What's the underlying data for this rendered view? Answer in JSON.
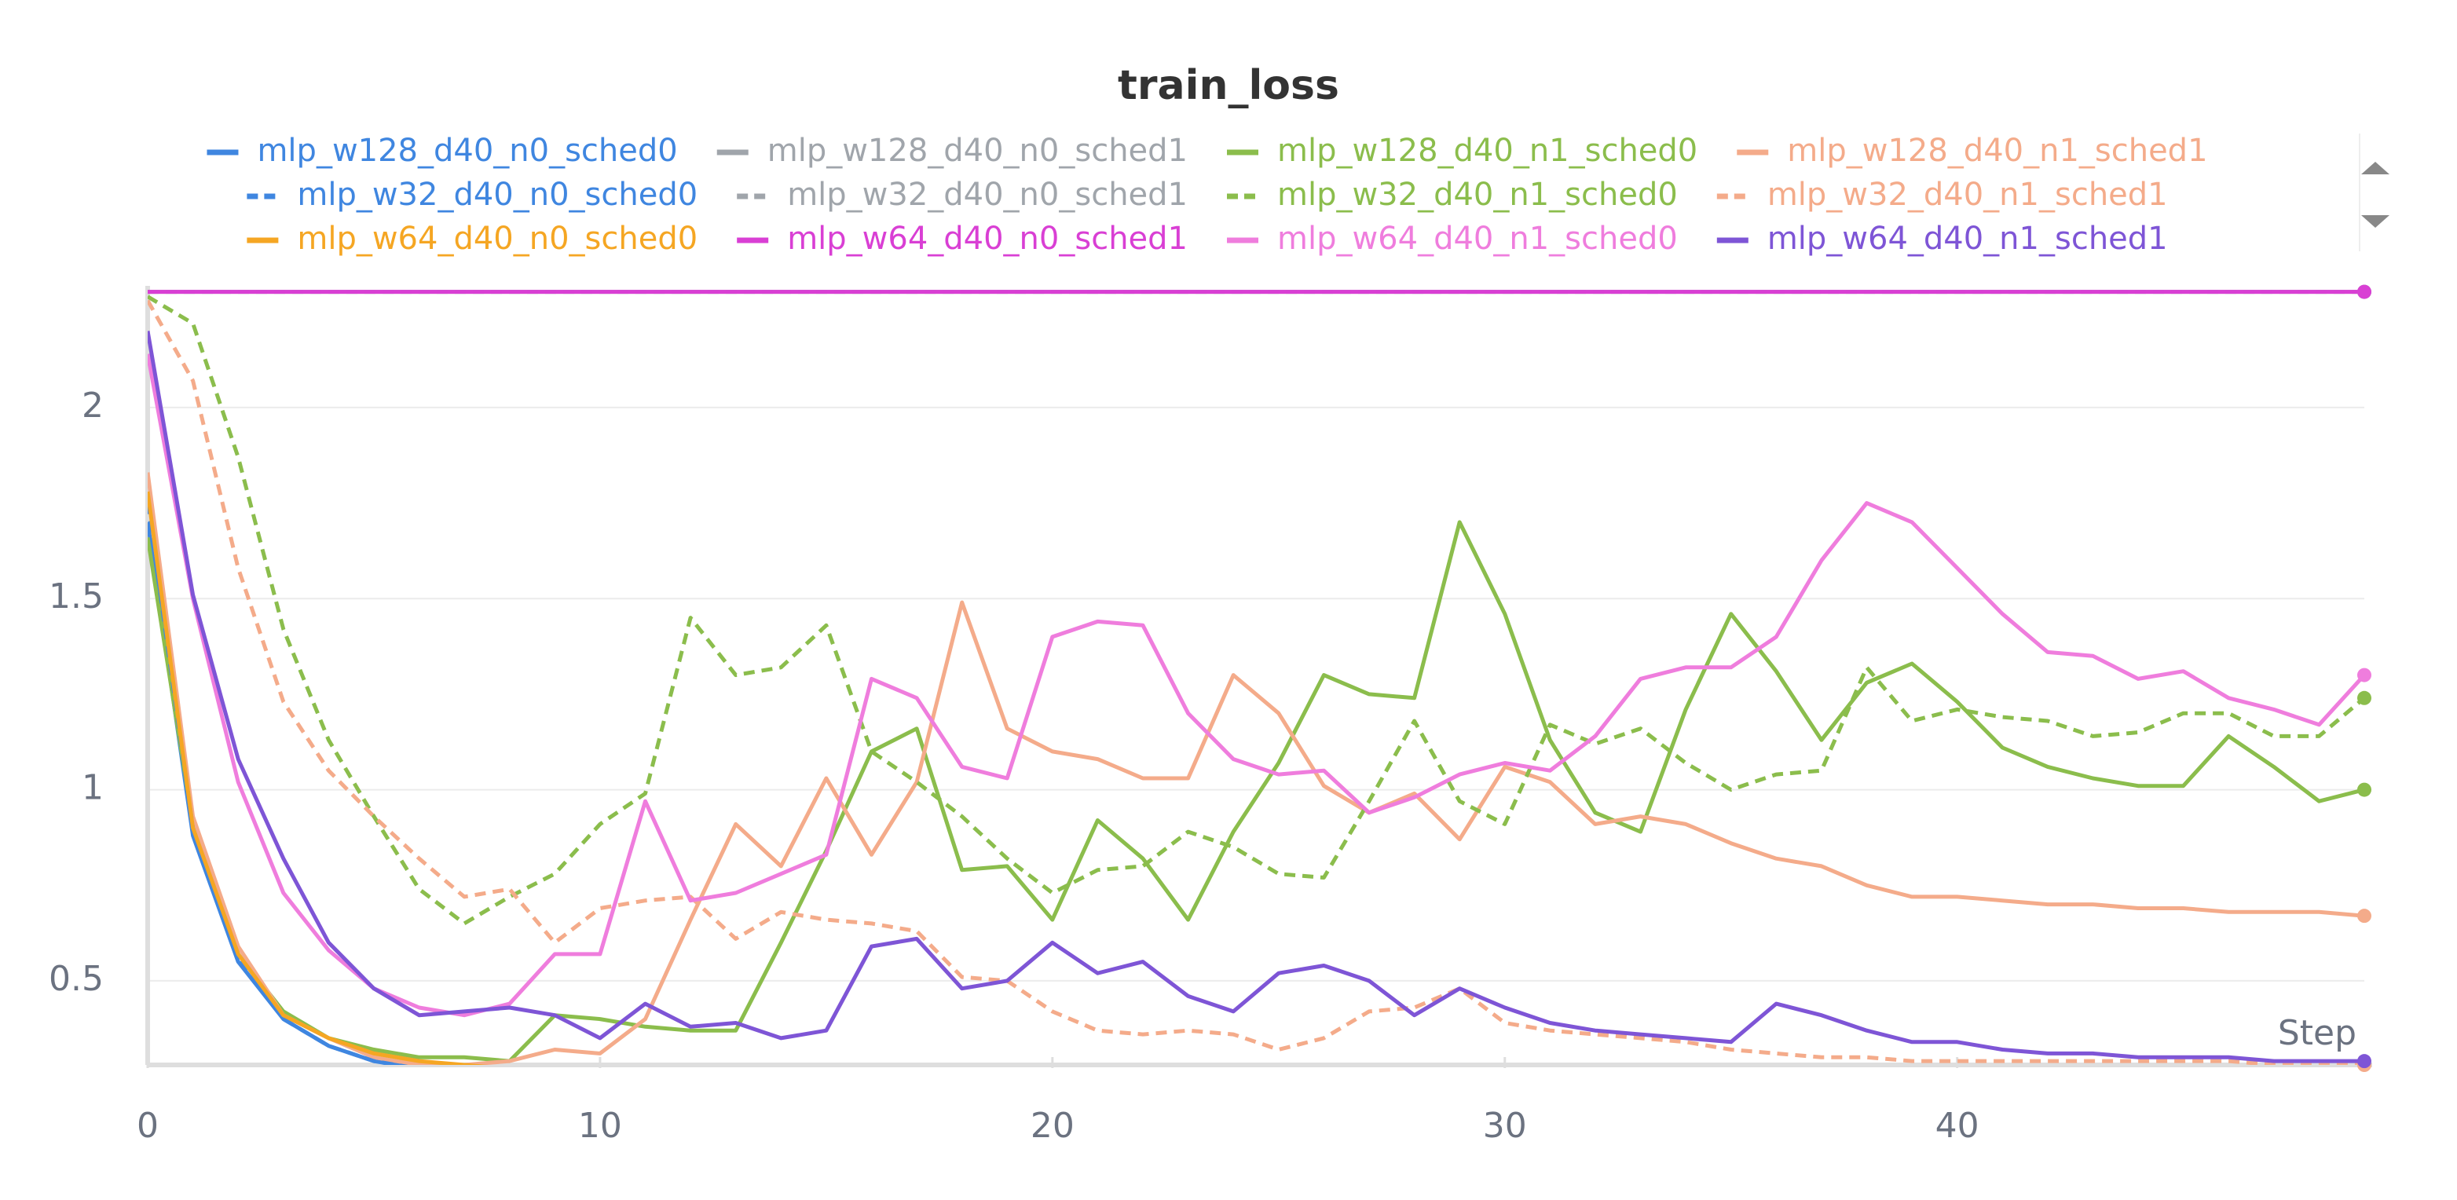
{
  "chart_data": {
    "type": "line",
    "title": "train_loss",
    "x_label": "Step",
    "x": [
      0,
      1,
      2,
      3,
      4,
      5,
      6,
      7,
      8,
      9,
      10,
      11,
      12,
      13,
      14,
      15,
      16,
      17,
      18,
      19,
      20,
      21,
      22,
      23,
      24,
      25,
      26,
      27,
      28,
      29,
      30,
      31,
      32,
      33,
      34,
      35,
      36,
      37,
      38,
      39,
      40,
      41,
      42,
      43,
      44,
      45,
      46,
      47,
      48,
      49
    ],
    "xlim": [
      0,
      49
    ],
    "xticks": [
      0,
      10,
      20,
      30,
      40
    ],
    "ylim": [
      0.28,
      2.31
    ],
    "yticks": [
      0.5,
      1,
      1.5,
      2
    ],
    "grid": true,
    "series": [
      {
        "name": "mlp_w128_d40_n0_sched0",
        "color": "#3f86e0",
        "dashed": false,
        "values": [
          1.7,
          0.88,
          0.55,
          0.4,
          0.33,
          0.29,
          0.27,
          0.26,
          0.25,
          0.25,
          0.24,
          0.24,
          0.24,
          0.23,
          0.23,
          0.23,
          0.23,
          0.22,
          0.22,
          0.22,
          0.22,
          0.22,
          0.22,
          0.21,
          0.21,
          0.21,
          0.21,
          0.21,
          0.21,
          0.21,
          0.21,
          0.2,
          0.2,
          0.2,
          0.2,
          0.2,
          0.2,
          0.2,
          0.2,
          0.2,
          0.2,
          0.2,
          0.2,
          0.2,
          0.2,
          0.2,
          0.2,
          0.2,
          0.2,
          0.2
        ]
      },
      {
        "name": "mlp_w128_d40_n0_sched1",
        "color": "#a0a5ab",
        "dashed": false,
        "values": [
          2.3026,
          2.3026,
          2.3026,
          2.3026,
          2.3026,
          2.3026,
          2.3026,
          2.3026,
          2.3026,
          2.3026,
          2.3026,
          2.3026,
          2.3026,
          2.3026,
          2.3026,
          2.3026,
          2.3026,
          2.3026,
          2.3026,
          2.3026,
          2.3026,
          2.3026,
          2.3026,
          2.3026,
          2.3026,
          2.3026,
          2.3026,
          2.3026,
          2.3026,
          2.3026,
          2.3026,
          2.3026,
          2.3026,
          2.3026,
          2.3026,
          2.3026,
          2.3026,
          2.3026,
          2.3026,
          2.3026,
          2.3026,
          2.3026,
          2.3026,
          2.3026,
          2.3026,
          2.3026,
          2.3026,
          2.3026,
          2.3026,
          2.3026
        ]
      },
      {
        "name": "mlp_w128_d40_n1_sched0",
        "color": "#8bbd4c",
        "dashed": false,
        "values": [
          1.66,
          0.91,
          0.57,
          0.42,
          0.35,
          0.32,
          0.3,
          0.3,
          0.29,
          0.41,
          0.4,
          0.38,
          0.37,
          0.37,
          0.6,
          0.84,
          1.1,
          1.16,
          0.79,
          0.8,
          0.66,
          0.92,
          0.82,
          0.66,
          0.89,
          1.07,
          1.3,
          1.25,
          1.24,
          1.7,
          1.46,
          1.13,
          0.94,
          0.89,
          1.21,
          1.46,
          1.31,
          1.13,
          1.28,
          1.33,
          1.23,
          1.11,
          1.06,
          1.03,
          1.01,
          1.01,
          1.14,
          1.06,
          0.97,
          1.0
        ]
      },
      {
        "name": "mlp_w128_d40_n1_sched1",
        "color": "#f4ab8a",
        "dashed": false,
        "values": [
          1.83,
          0.93,
          0.59,
          0.41,
          0.35,
          0.3,
          0.28,
          0.28,
          0.29,
          0.32,
          0.31,
          0.4,
          0.66,
          0.91,
          0.8,
          1.03,
          0.83,
          1.02,
          1.49,
          1.16,
          1.1,
          1.08,
          1.03,
          1.03,
          1.3,
          1.2,
          1.01,
          0.94,
          0.99,
          0.87,
          1.06,
          1.02,
          0.91,
          0.93,
          0.91,
          0.86,
          0.82,
          0.8,
          0.75,
          0.72,
          0.72,
          0.71,
          0.7,
          0.7,
          0.69,
          0.69,
          0.68,
          0.68,
          0.68,
          0.67
        ]
      },
      {
        "name": "mlp_w32_d40_n0_sched0",
        "color": "#3f86e0",
        "dashed": true,
        "values": [
          1.75,
          0.9,
          0.56,
          0.4,
          0.33,
          0.29,
          0.27,
          0.26,
          0.25,
          0.24,
          0.24,
          0.23,
          0.23,
          0.23,
          0.22,
          0.22,
          0.22,
          0.22,
          0.21,
          0.21,
          0.21,
          0.21,
          0.21,
          0.21,
          0.2,
          0.2,
          0.2,
          0.2,
          0.2,
          0.2,
          0.2,
          0.2,
          0.2,
          0.19,
          0.19,
          0.19,
          0.19,
          0.19,
          0.19,
          0.19,
          0.19,
          0.19,
          0.19,
          0.19,
          0.19,
          0.19,
          0.19,
          0.19,
          0.19,
          0.19
        ]
      },
      {
        "name": "mlp_w32_d40_n0_sched1",
        "color": "#a0a5ab",
        "dashed": true,
        "values": [
          2.3026,
          2.3026,
          2.3026,
          2.3026,
          2.3026,
          2.3026,
          2.3026,
          2.3026,
          2.3026,
          2.3026,
          2.3026,
          2.3026,
          2.3026,
          2.3026,
          2.3026,
          2.3026,
          2.3026,
          2.3026,
          2.3026,
          2.3026,
          2.3026,
          2.3026,
          2.3026,
          2.3026,
          2.3026,
          2.3026,
          2.3026,
          2.3026,
          2.3026,
          2.3026,
          2.3026,
          2.3026,
          2.3026,
          2.3026,
          2.3026,
          2.3026,
          2.3026,
          2.3026,
          2.3026,
          2.3026,
          2.3026,
          2.3026,
          2.3026,
          2.3026,
          2.3026,
          2.3026,
          2.3026,
          2.3026,
          2.3026,
          2.3026
        ]
      },
      {
        "name": "mlp_w32_d40_n1_sched0",
        "color": "#8bbd4c",
        "dashed": true,
        "values": [
          2.29,
          2.22,
          1.87,
          1.42,
          1.13,
          0.93,
          0.74,
          0.65,
          0.72,
          0.78,
          0.91,
          0.99,
          1.45,
          1.3,
          1.32,
          1.43,
          1.1,
          1.02,
          0.93,
          0.82,
          0.73,
          0.79,
          0.8,
          0.89,
          0.85,
          0.78,
          0.77,
          0.97,
          1.18,
          0.97,
          0.91,
          1.17,
          1.12,
          1.16,
          1.07,
          1.0,
          1.04,
          1.05,
          1.32,
          1.18,
          1.21,
          1.19,
          1.18,
          1.14,
          1.15,
          1.2,
          1.2,
          1.14,
          1.14,
          1.24
        ]
      },
      {
        "name": "mlp_w32_d40_n1_sched1",
        "color": "#f4ab8a",
        "dashed": true,
        "values": [
          2.28,
          2.07,
          1.58,
          1.23,
          1.05,
          0.93,
          0.82,
          0.72,
          0.74,
          0.6,
          0.69,
          0.71,
          0.72,
          0.61,
          0.68,
          0.66,
          0.65,
          0.63,
          0.51,
          0.5,
          0.42,
          0.37,
          0.36,
          0.37,
          0.36,
          0.32,
          0.35,
          0.42,
          0.43,
          0.48,
          0.39,
          0.37,
          0.36,
          0.35,
          0.34,
          0.32,
          0.31,
          0.3,
          0.3,
          0.29,
          0.29,
          0.29,
          0.29,
          0.29,
          0.29,
          0.29,
          0.29,
          0.28,
          0.28,
          0.28
        ]
      },
      {
        "name": "mlp_w64_d40_n0_sched0",
        "color": "#f5a623",
        "dashed": false,
        "values": [
          1.78,
          0.9,
          0.57,
          0.41,
          0.35,
          0.31,
          0.29,
          0.28,
          0.27,
          0.26,
          0.26,
          0.25,
          0.25,
          0.24,
          0.24,
          0.24,
          0.23,
          0.23,
          0.23,
          0.23,
          0.22,
          0.22,
          0.22,
          0.22,
          0.22,
          0.22,
          0.21,
          0.21,
          0.21,
          0.21,
          0.21,
          0.21,
          0.21,
          0.21,
          0.21,
          0.2,
          0.2,
          0.2,
          0.2,
          0.2,
          0.2,
          0.2,
          0.2,
          0.2,
          0.2,
          0.2,
          0.2,
          0.2,
          0.2,
          0.2
        ]
      },
      {
        "name": "mlp_w64_d40_n0_sched1",
        "color": "#d93fd4",
        "dashed": false,
        "values": [
          2.3026,
          2.3026,
          2.3026,
          2.3026,
          2.3026,
          2.3026,
          2.3026,
          2.3026,
          2.3026,
          2.3026,
          2.3026,
          2.3026,
          2.3026,
          2.3026,
          2.3026,
          2.3026,
          2.3026,
          2.3026,
          2.3026,
          2.3026,
          2.3026,
          2.3026,
          2.3026,
          2.3026,
          2.3026,
          2.3026,
          2.3026,
          2.3026,
          2.3026,
          2.3026,
          2.3026,
          2.3026,
          2.3026,
          2.3026,
          2.3026,
          2.3026,
          2.3026,
          2.3026,
          2.3026,
          2.3026,
          2.3026,
          2.3026,
          2.3026,
          2.3026,
          2.3026,
          2.3026,
          2.3026,
          2.3026,
          2.3026,
          2.3026
        ]
      },
      {
        "name": "mlp_w64_d40_n1_sched0",
        "color": "#ef7ddd",
        "dashed": false,
        "values": [
          2.14,
          1.5,
          1.02,
          0.73,
          0.58,
          0.48,
          0.43,
          0.41,
          0.44,
          0.57,
          0.57,
          0.97,
          0.71,
          0.73,
          0.78,
          0.83,
          1.29,
          1.24,
          1.06,
          1.03,
          1.4,
          1.44,
          1.43,
          1.2,
          1.08,
          1.04,
          1.05,
          0.94,
          0.98,
          1.04,
          1.07,
          1.05,
          1.14,
          1.29,
          1.32,
          1.32,
          1.4,
          1.6,
          1.75,
          1.7,
          1.58,
          1.46,
          1.36,
          1.35,
          1.29,
          1.31,
          1.24,
          1.21,
          1.17,
          1.3
        ]
      },
      {
        "name": "mlp_w64_d40_n1_sched1",
        "color": "#7e55d6",
        "dashed": false,
        "values": [
          2.2,
          1.51,
          1.08,
          0.82,
          0.6,
          0.48,
          0.41,
          0.42,
          0.43,
          0.41,
          0.35,
          0.44,
          0.38,
          0.39,
          0.35,
          0.37,
          0.59,
          0.61,
          0.48,
          0.5,
          0.6,
          0.52,
          0.55,
          0.46,
          0.42,
          0.52,
          0.54,
          0.5,
          0.41,
          0.48,
          0.43,
          0.39,
          0.37,
          0.36,
          0.35,
          0.34,
          0.44,
          0.41,
          0.37,
          0.34,
          0.34,
          0.32,
          0.31,
          0.31,
          0.3,
          0.3,
          0.3,
          0.29,
          0.29,
          0.29
        ]
      }
    ]
  }
}
